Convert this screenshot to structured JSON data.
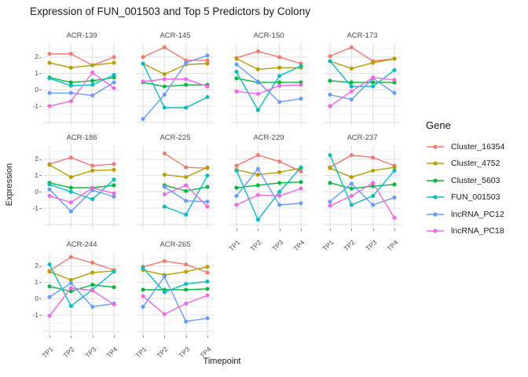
{
  "header": {
    "title": "Expression of FUN_001503 and Top 5 Predictors by Colony"
  },
  "axes": {
    "x_label": "Timepoint",
    "y_label": "Expression",
    "x_ticks": [
      "TP1",
      "TP2",
      "TP3",
      "TP4"
    ],
    "y_ticks": [
      "2",
      "1",
      "0",
      "-1"
    ]
  },
  "legend": {
    "title": "Gene",
    "entries": [
      {
        "label": "Cluster_16354",
        "color": "#F8766D"
      },
      {
        "label": "Cluster_4752",
        "color": "#B79F00"
      },
      {
        "label": "Cluster_5603",
        "color": "#00BA38"
      },
      {
        "label": "FUN_001503",
        "color": "#00BFC4"
      },
      {
        "label": "lncRNA_PC12",
        "color": "#619CFF"
      },
      {
        "label": "lncRNA_PC18",
        "color": "#F564E3"
      }
    ]
  },
  "chart_data": {
    "type": "line",
    "title": "Expression of FUN_001503 and Top 5 Predictors by Colony",
    "xlabel": "Timepoint",
    "ylabel": "Expression",
    "x": [
      "TP1",
      "TP2",
      "TP3",
      "TP4"
    ],
    "ylim": [
      -2.2,
      2.85
    ],
    "y_major_gridlines": [
      -2,
      -1,
      0,
      1,
      2
    ],
    "y_minor_gridlines": [
      -1.5,
      -0.5,
      0.5,
      1.5,
      2.5
    ],
    "grid": "on",
    "legend_position": "right",
    "series_names": [
      "Cluster_16354",
      "Cluster_4752",
      "Cluster_5603",
      "FUN_001503",
      "lncRNA_PC12",
      "lncRNA_PC18"
    ],
    "series_colors": {
      "Cluster_16354": "#F8766D",
      "Cluster_4752": "#B79F00",
      "Cluster_5603": "#00BA38",
      "FUN_001503": "#00BFC4",
      "lncRNA_PC12": "#619CFF",
      "lncRNA_PC18": "#F564E3"
    },
    "facets": [
      {
        "label": "ACR-139",
        "series": {
          "Cluster_16354": [
            2.2,
            2.2,
            1.5,
            2.0
          ],
          "Cluster_4752": [
            1.65,
            1.35,
            1.5,
            1.65
          ],
          "Cluster_5603": [
            0.75,
            0.45,
            0.55,
            0.75
          ],
          "FUN_001503": [
            0.7,
            0.25,
            0.3,
            0.9
          ],
          "lncRNA_PC12": [
            -0.2,
            -0.2,
            -0.35,
            0.45
          ],
          "lncRNA_PC18": [
            -1.0,
            -0.7,
            1.05,
            0.1
          ]
        }
      },
      {
        "label": "ACR-145",
        "series": {
          "Cluster_16354": [
            2.0,
            2.6,
            1.8,
            1.8
          ],
          "Cluster_4752": [
            1.6,
            0.95,
            1.55,
            1.6
          ],
          "Cluster_5603": [
            0.45,
            0.2,
            0.3,
            0.3
          ],
          "FUN_001503": [
            1.6,
            -1.1,
            -1.1,
            -0.45
          ],
          "lncRNA_PC12": [
            -1.8,
            -0.3,
            1.65,
            2.1
          ],
          "lncRNA_PC18": [
            0.5,
            0.65,
            0.65,
            0.2
          ]
        }
      },
      {
        "label": "ACR-150",
        "series": {
          "Cluster_16354": [
            1.95,
            2.35,
            2.0,
            1.6
          ],
          "Cluster_4752": [
            1.9,
            1.25,
            1.35,
            1.35
          ],
          "Cluster_5603": [
            0.7,
            0.45,
            0.45,
            0.45
          ],
          "FUN_001503": [
            1.1,
            -1.25,
            0.85,
            1.45
          ],
          "lncRNA_PC12": [
            1.55,
            0.5,
            -0.75,
            -0.55
          ],
          "lncRNA_PC18": [
            -0.1,
            -0.25,
            0.25,
            0.3
          ]
        }
      },
      {
        "label": "ACR-173",
        "series": {
          "Cluster_16354": [
            2.05,
            2.6,
            1.75,
            1.9
          ],
          "Cluster_4752": [
            1.75,
            1.3,
            1.65,
            1.9
          ],
          "Cluster_5603": [
            0.55,
            0.45,
            0.45,
            0.45
          ],
          "FUN_001503": [
            1.75,
            0.2,
            0.2,
            1.2
          ],
          "lncRNA_PC12": [
            -0.3,
            -0.6,
            0.7,
            -0.2
          ],
          "lncRNA_PC18": [
            -1.0,
            -0.1,
            0.75,
            0.6
          ]
        }
      },
      {
        "label": "ACR-186",
        "series": {
          "Cluster_16354": [
            1.7,
            2.1,
            1.6,
            1.7
          ],
          "Cluster_4752": [
            1.65,
            0.9,
            1.3,
            1.35
          ],
          "Cluster_5603": [
            0.55,
            0.25,
            0.25,
            0.4
          ],
          "FUN_001503": [
            0.45,
            0.0,
            -0.45,
            0.75
          ],
          "lncRNA_PC12": [
            0.15,
            -1.2,
            0.1,
            -0.3
          ],
          "lncRNA_PC18": [
            -0.25,
            -0.65,
            0.25,
            -0.1
          ]
        }
      },
      {
        "label": "ACR-225",
        "series": {
          "Cluster_16354": [
            null,
            2.35,
            1.5,
            1.45
          ],
          "Cluster_4752": [
            null,
            1.05,
            0.9,
            1.5
          ],
          "Cluster_5603": [
            null,
            0.4,
            0.05,
            0.3
          ],
          "FUN_001503": [
            null,
            -0.9,
            -1.4,
            1.0
          ],
          "lncRNA_PC12": [
            null,
            0.3,
            -0.55,
            -0.6
          ],
          "lncRNA_PC18": [
            null,
            -0.15,
            0.4,
            -0.9
          ]
        }
      },
      {
        "label": "ACR-229",
        "series": {
          "Cluster_16354": [
            1.6,
            2.25,
            1.85,
            1.25
          ],
          "Cluster_4752": [
            1.35,
            1.05,
            1.2,
            1.45
          ],
          "Cluster_5603": [
            0.25,
            0.4,
            0.55,
            0.6
          ],
          "FUN_001503": [
            1.3,
            -1.7,
            0.0,
            1.5
          ],
          "lncRNA_PC12": [
            -0.25,
            1.4,
            -0.8,
            -0.7
          ],
          "lncRNA_PC18": [
            -0.8,
            -0.2,
            -0.25,
            0.2
          ]
        }
      },
      {
        "label": "ACR-237",
        "series": {
          "Cluster_16354": [
            1.5,
            2.25,
            2.1,
            1.6
          ],
          "Cluster_4752": [
            1.45,
            0.9,
            1.3,
            1.5
          ],
          "Cluster_5603": [
            0.55,
            0.2,
            0.35,
            0.45
          ],
          "FUN_001503": [
            2.25,
            -0.8,
            -0.25,
            1.3
          ],
          "lncRNA_PC12": [
            -0.6,
            0.5,
            -0.8,
            -0.35
          ],
          "lncRNA_PC18": [
            -0.85,
            -0.25,
            0.55,
            -1.6
          ]
        }
      },
      {
        "label": "ACR-244",
        "series": {
          "Cluster_16354": [
            1.7,
            2.55,
            2.2,
            1.75
          ],
          "Cluster_4752": [
            1.65,
            1.15,
            1.6,
            1.7
          ],
          "Cluster_5603": [
            0.75,
            0.45,
            0.85,
            0.7
          ],
          "FUN_001503": [
            2.1,
            -0.45,
            0.55,
            1.65
          ],
          "lncRNA_PC12": [
            0.1,
            0.95,
            -0.5,
            -0.3
          ],
          "lncRNA_PC18": [
            -1.05,
            0.65,
            0.5,
            -0.35
          ]
        }
      },
      {
        "label": "ACR-265",
        "series": {
          "Cluster_16354": [
            1.95,
            2.3,
            2.1,
            1.6
          ],
          "Cluster_4752": [
            1.75,
            1.45,
            1.65,
            1.95
          ],
          "Cluster_5603": [
            0.55,
            0.55,
            0.55,
            0.6
          ],
          "FUN_001503": [
            1.9,
            0.4,
            0.9,
            1.05
          ],
          "lncRNA_PC12": [
            -0.5,
            1.35,
            -1.4,
            -1.2
          ],
          "lncRNA_PC18": [
            0.15,
            -0.95,
            -0.3,
            0.2
          ]
        }
      }
    ]
  }
}
